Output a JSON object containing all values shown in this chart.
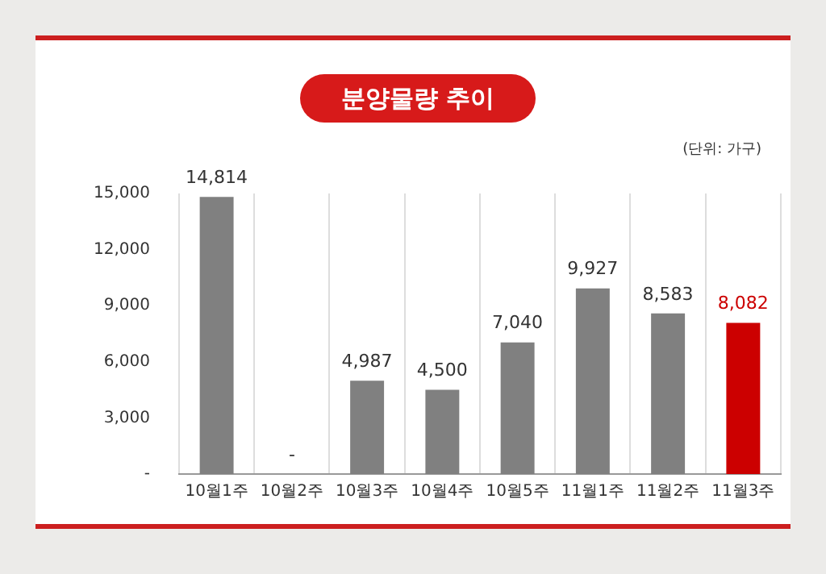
{
  "chart_data": {
    "type": "bar",
    "title": "분양물량 추이",
    "annotations": [
      "(단위: 가구)"
    ],
    "categories": [
      "10월1주",
      "10월2주",
      "10월3주",
      "10월4주",
      "10월5주",
      "11월1주",
      "11월2주",
      "11월3주"
    ],
    "values": [
      14814,
      0,
      4987,
      4500,
      7040,
      9927,
      8583,
      8082
    ],
    "value_labels": [
      "14,814",
      "-",
      "4,987",
      "4,500",
      "7,040",
      "9,927",
      "8,583",
      "8,082"
    ],
    "colors": [
      "#808080",
      "#808080",
      "#808080",
      "#808080",
      "#808080",
      "#808080",
      "#808080",
      "#cc0000"
    ],
    "ylim": [
      0,
      15000
    ],
    "yticks": [
      {
        "value": 0,
        "label": "-"
      },
      {
        "value": 3000,
        "label": "3,000"
      },
      {
        "value": 6000,
        "label": "6,000"
      },
      {
        "value": 9000,
        "label": "9,000"
      },
      {
        "value": 12000,
        "label": "12,000"
      },
      {
        "value": 15000,
        "label": "15,000"
      }
    ],
    "grid": "x",
    "legend": false
  }
}
